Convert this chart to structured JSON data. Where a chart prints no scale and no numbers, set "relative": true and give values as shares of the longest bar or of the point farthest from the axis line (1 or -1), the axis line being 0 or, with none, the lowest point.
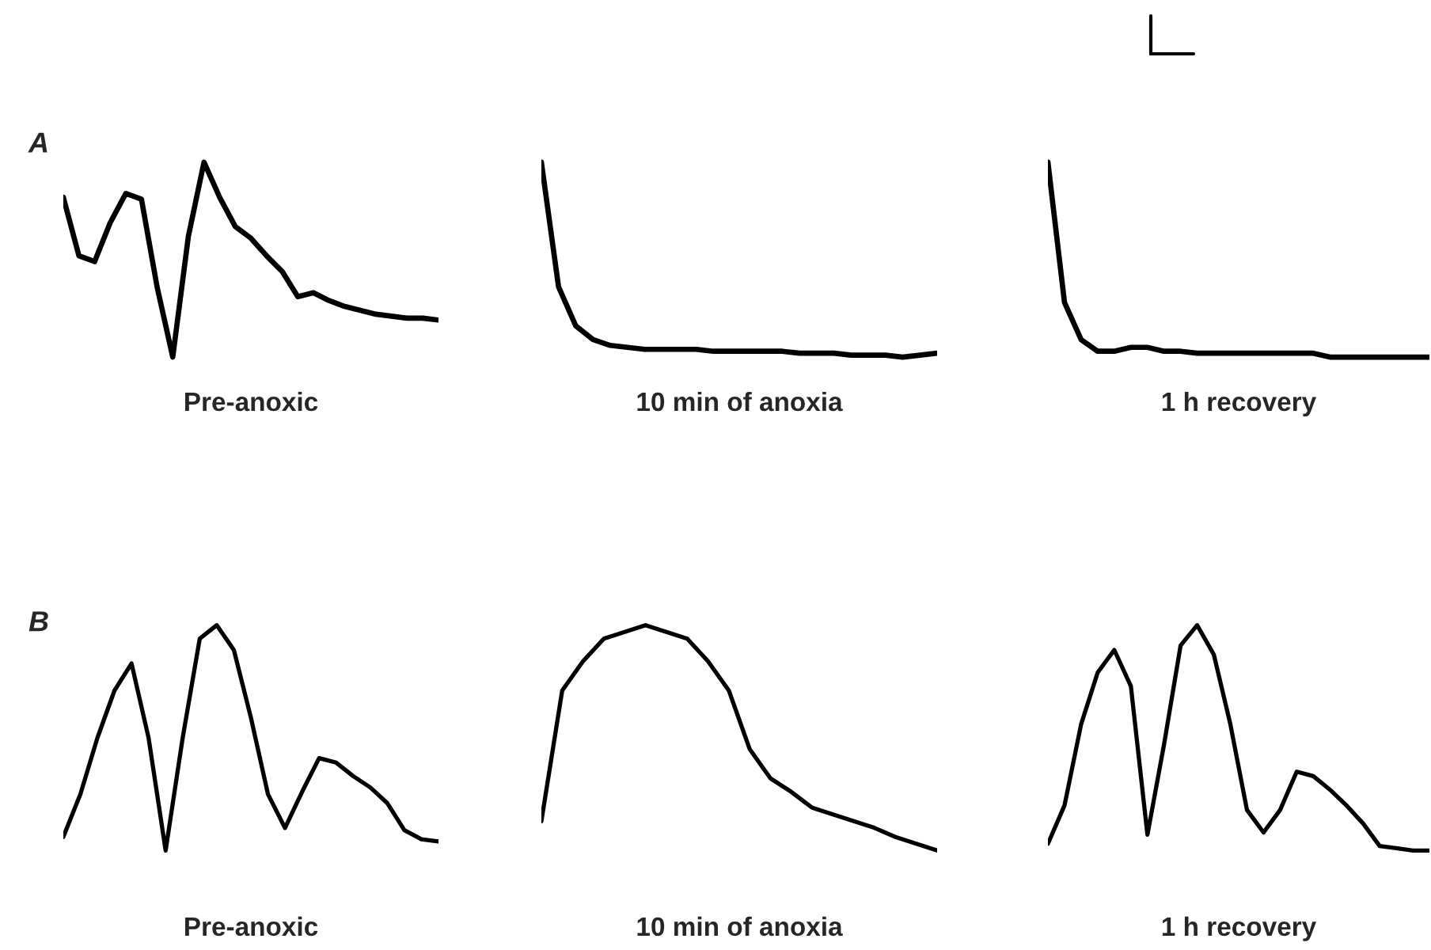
{
  "chart_data": [
    {
      "type": "line",
      "title": "A",
      "xlabel": "Pre-anoxic",
      "relative": true,
      "tick_labels": false,
      "color": "#000000",
      "categories": [
        null,
        null,
        null,
        null,
        null,
        null,
        null,
        null,
        null,
        null,
        null,
        null,
        null,
        null,
        null,
        null,
        null,
        null,
        null,
        null,
        null,
        null,
        null,
        null,
        null
      ],
      "values": [
        0.82,
        0.52,
        0.49,
        0.69,
        0.84,
        0.81,
        0.36,
        0,
        0.62,
        1,
        0.82,
        0.67,
        0.61,
        0.52,
        0.44,
        0.31,
        0.33,
        0.29,
        0.26,
        0.24,
        0.22,
        0.21,
        0.2,
        0.2,
        0.19
      ]
    },
    {
      "type": "line",
      "xlabel": "10 min of anoxia",
      "relative": true,
      "tick_labels": false,
      "color": "#000000",
      "categories": [
        null,
        null,
        null,
        null,
        null,
        null,
        null,
        null,
        null,
        null,
        null,
        null,
        null,
        null,
        null,
        null,
        null,
        null,
        null,
        null,
        null,
        null,
        null,
        null
      ],
      "values": [
        1,
        0.36,
        0.16,
        0.09,
        0.06,
        0.05,
        0.04,
        0.04,
        0.04,
        0.04,
        0.03,
        0.03,
        0.03,
        0.03,
        0.03,
        0.02,
        0.02,
        0.02,
        0.01,
        0.01,
        0.01,
        0,
        0.01,
        0.02
      ]
    },
    {
      "type": "line",
      "xlabel": "1 h recovery",
      "relative": true,
      "tick_labels": false,
      "color": "#000000",
      "categories": [
        null,
        null,
        null,
        null,
        null,
        null,
        null,
        null,
        null,
        null,
        null,
        null,
        null,
        null,
        null,
        null,
        null,
        null,
        null,
        null,
        null,
        null,
        null,
        null
      ],
      "values": [
        1,
        0.28,
        0.09,
        0.03,
        0.03,
        0.05,
        0.05,
        0.03,
        0.03,
        0.02,
        0.02,
        0.02,
        0.02,
        0.02,
        0.02,
        0.02,
        0.02,
        0,
        0,
        0,
        0,
        0,
        0,
        0
      ]
    },
    {
      "type": "line",
      "title": "B",
      "xlabel": "Pre-anoxic",
      "relative": true,
      "tick_labels": false,
      "color": "#000000",
      "categories": [
        null,
        null,
        null,
        null,
        null,
        null,
        null,
        null,
        null,
        null,
        null,
        null,
        null,
        null,
        null,
        null,
        null,
        null,
        null,
        null,
        null,
        null,
        null
      ],
      "values": [
        0.06,
        0.25,
        0.5,
        0.71,
        0.83,
        0.5,
        0,
        0.5,
        0.94,
        1,
        0.89,
        0.59,
        0.25,
        0.1,
        0.26,
        0.41,
        0.39,
        0.33,
        0.28,
        0.21,
        0.09,
        0.05,
        0.04
      ]
    },
    {
      "type": "line",
      "xlabel": "10 min of anoxia",
      "relative": true,
      "tick_labels": false,
      "color": "#000000",
      "categories": [
        null,
        null,
        null,
        null,
        null,
        null,
        null,
        null,
        null,
        null,
        null,
        null,
        null,
        null,
        null,
        null,
        null,
        null,
        null,
        null
      ],
      "values": [
        0.13,
        0.71,
        0.84,
        0.94,
        0.97,
        1,
        0.97,
        0.94,
        0.84,
        0.71,
        0.45,
        0.32,
        0.26,
        0.19,
        0.16,
        0.13,
        0.1,
        0.06,
        0.03,
        0
      ]
    },
    {
      "type": "line",
      "xlabel": "1 h recovery",
      "relative": true,
      "tick_labels": false,
      "color": "#000000",
      "categories": [
        null,
        null,
        null,
        null,
        null,
        null,
        null,
        null,
        null,
        null,
        null,
        null,
        null,
        null,
        null,
        null,
        null,
        null,
        null,
        null,
        null,
        null,
        null,
        null
      ],
      "values": [
        0.03,
        0.2,
        0.56,
        0.79,
        0.89,
        0.73,
        0.07,
        0.47,
        0.91,
        1,
        0.87,
        0.56,
        0.18,
        0.08,
        0.18,
        0.35,
        0.33,
        0.27,
        0.2,
        0.12,
        0.02,
        0.01,
        0,
        0
      ]
    }
  ]
}
